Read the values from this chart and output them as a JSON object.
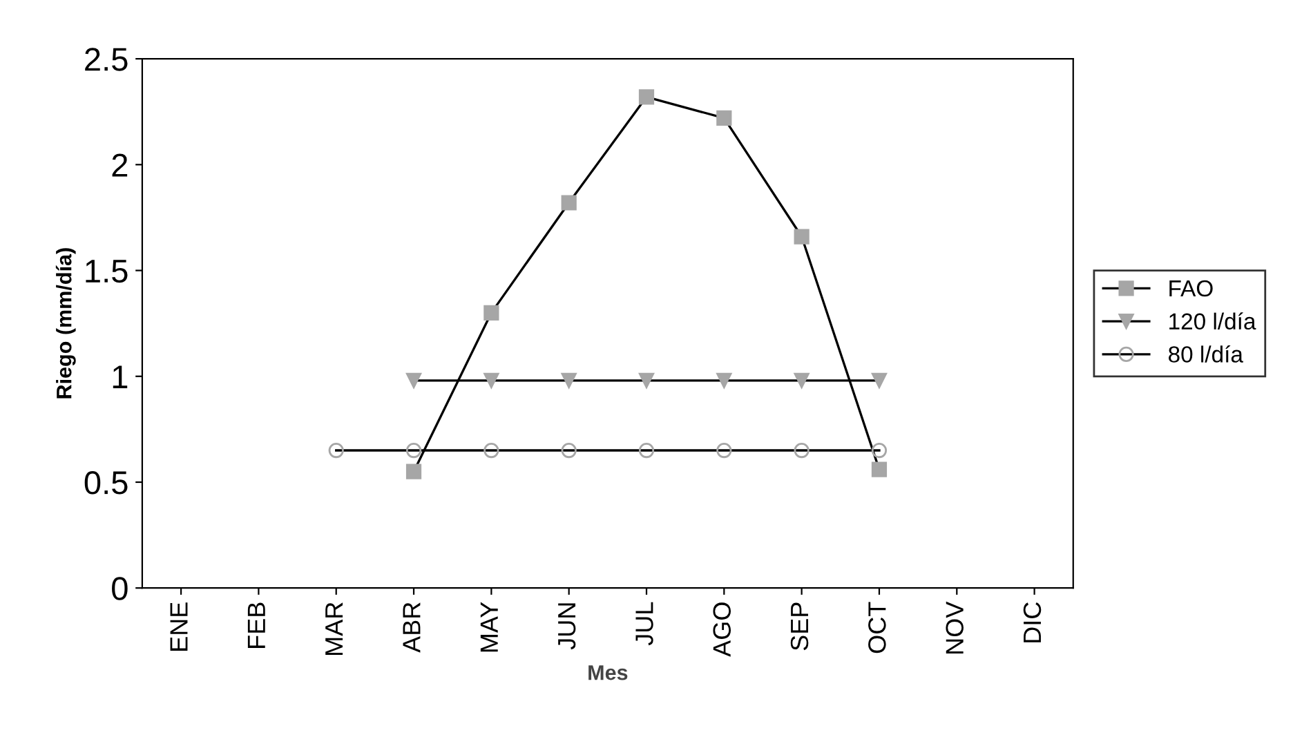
{
  "chart_data": {
    "type": "line",
    "xlabel": "Mes",
    "ylabel": "Riego (mm/día)",
    "categories": [
      "ENE",
      "FEB",
      "MAR",
      "ABR",
      "MAY",
      "JUN",
      "JUL",
      "AGO",
      "SEP",
      "OCT",
      "NOV",
      "DIC"
    ],
    "series": [
      {
        "name": "FAO",
        "color": "#a6a6a6",
        "marker": "square",
        "values": [
          null,
          null,
          null,
          0.55,
          1.3,
          1.82,
          2.32,
          2.22,
          1.66,
          0.56,
          null,
          null
        ]
      },
      {
        "name": "120 l/día",
        "color": "#a6a6a6",
        "marker": "triangle",
        "values": [
          null,
          null,
          null,
          0.98,
          0.98,
          0.98,
          0.98,
          0.98,
          0.98,
          0.98,
          null,
          null
        ]
      },
      {
        "name": "80 l/día",
        "color": "#a6a6a6",
        "marker": "circle",
        "values": [
          null,
          null,
          0.65,
          0.65,
          0.65,
          0.65,
          0.65,
          0.65,
          0.65,
          0.65,
          null,
          null
        ]
      }
    ],
    "ylim": [
      0,
      2.5
    ],
    "yticks": [
      0,
      0.5,
      1,
      1.5,
      2,
      2.5
    ],
    "grid": false,
    "legend": "right",
    "line_style": "solid"
  }
}
